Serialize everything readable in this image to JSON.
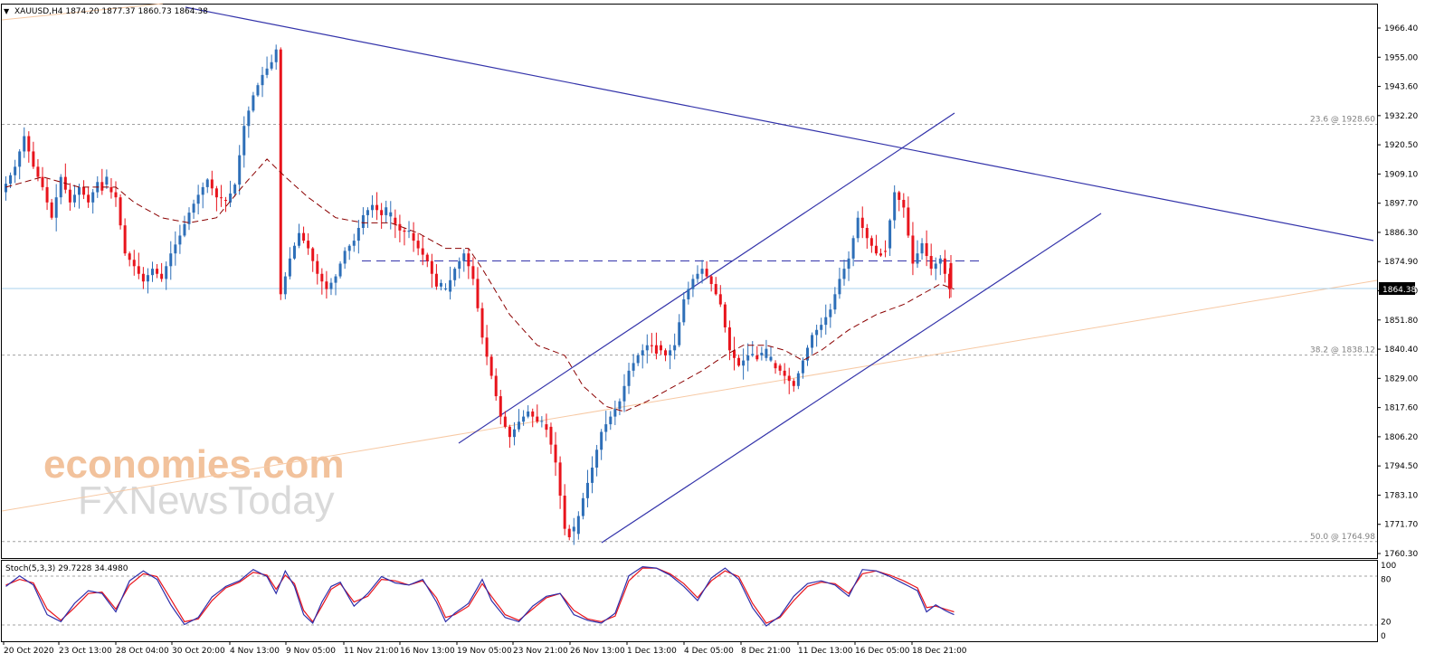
{
  "header": {
    "symbol_line": "XAUUSD,H4  1874.20 1877.37 1860.73 1864.38"
  },
  "watermark": {
    "line1": "economies.com",
    "line2": "FXNewsToday"
  },
  "colors": {
    "bull": "#2e6fb8",
    "bear": "#e8141c",
    "trendline": "#3333aa",
    "ma": "#8b0000",
    "fib_line": "#a0a0a0",
    "current_price_bg": "#000000"
  },
  "chart_data": [
    {
      "type": "candlestick",
      "symbol": "XAUUSD",
      "timeframe": "H4",
      "ohlc": {
        "open": 1874.2,
        "high": 1877.37,
        "low": 1860.73,
        "close": 1864.38
      },
      "current_price": "1864.38",
      "ylim": [
        1760.3,
        1975.0
      ],
      "y_ticks": [
        "1966.40",
        "1955.00",
        "1943.60",
        "1932.20",
        "1920.50",
        "1909.10",
        "1897.70",
        "1886.30",
        "1874.90",
        "1863.50",
        "1851.80",
        "1840.40",
        "1829.00",
        "1817.60",
        "1806.20",
        "1794.50",
        "1783.10",
        "1771.70",
        "1760.30"
      ],
      "x_ticks": [
        "20 Oct 2020",
        "23 Oct 13:00",
        "28 Oct 04:00",
        "30 Oct 20:00",
        "4 Nov 13:00",
        "9 Nov 05:00",
        "11 Nov 21:00",
        "16 Nov 13:00",
        "19 Nov 05:00",
        "23 Nov 21:00",
        "26 Nov 13:00",
        "1 Dec 13:00",
        "4 Dec 05:00",
        "8 Dec 21:00",
        "11 Dec 13:00",
        "16 Dec 05:00",
        "18 Dec 21:00"
      ],
      "fib_levels": [
        {
          "label": "23.6 @ 1928.60",
          "value": 1928.6
        },
        {
          "label": "38.2 @ 1838.12",
          "value": 1838.12
        },
        {
          "label": "50.0 @ 1764.98",
          "value": 1764.98
        }
      ],
      "horizontal_dashed_resistance": 1875.5,
      "price_path": [
        [
          0,
          1902
        ],
        [
          3,
          1912
        ],
        [
          5,
          1924
        ],
        [
          7,
          1912
        ],
        [
          9,
          1904
        ],
        [
          11,
          1892
        ],
        [
          13,
          1908
        ],
        [
          15,
          1898
        ],
        [
          17,
          1904
        ],
        [
          19,
          1898
        ],
        [
          21,
          1906
        ],
        [
          23,
          1904
        ],
        [
          25,
          1900
        ],
        [
          27,
          1878
        ],
        [
          29,
          1873
        ],
        [
          31,
          1867
        ],
        [
          33,
          1872
        ],
        [
          35,
          1868
        ],
        [
          37,
          1878
        ],
        [
          39,
          1885
        ],
        [
          41,
          1894
        ],
        [
          43,
          1901
        ],
        [
          45,
          1907
        ],
        [
          47,
          1900
        ],
        [
          49,
          1898
        ],
        [
          51,
          1905
        ],
        [
          53,
          1928
        ],
        [
          55,
          1940
        ],
        [
          57,
          1948
        ],
        [
          59,
          1953
        ],
        [
          60,
          1958
        ],
        [
          61,
          1862
        ],
        [
          63,
          1876
        ],
        [
          65,
          1886
        ],
        [
          67,
          1880
        ],
        [
          69,
          1870
        ],
        [
          71,
          1864
        ],
        [
          73,
          1869
        ],
        [
          75,
          1879
        ],
        [
          77,
          1883
        ],
        [
          79,
          1893
        ],
        [
          81,
          1897
        ],
        [
          83,
          1893
        ],
        [
          85,
          1892
        ],
        [
          87,
          1887
        ],
        [
          89,
          1886
        ],
        [
          91,
          1880
        ],
        [
          93,
          1875
        ],
        [
          95,
          1865
        ],
        [
          97,
          1863
        ],
        [
          99,
          1872
        ],
        [
          101,
          1878
        ],
        [
          103,
          1868
        ],
        [
          105,
          1845
        ],
        [
          107,
          1830
        ],
        [
          109,
          1814
        ],
        [
          111,
          1806
        ],
        [
          113,
          1812
        ],
        [
          115,
          1816
        ],
        [
          117,
          1812
        ],
        [
          119,
          1810
        ],
        [
          121,
          1796
        ],
        [
          123,
          1770
        ],
        [
          125,
          1768
        ],
        [
          127,
          1782
        ],
        [
          129,
          1794
        ],
        [
          131,
          1808
        ],
        [
          133,
          1814
        ],
        [
          135,
          1820
        ],
        [
          137,
          1832
        ],
        [
          139,
          1838
        ],
        [
          141,
          1842
        ],
        [
          143,
          1842
        ],
        [
          145,
          1838
        ],
        [
          147,
          1842
        ],
        [
          149,
          1860
        ],
        [
          151,
          1868
        ],
        [
          153,
          1872
        ],
        [
          155,
          1866
        ],
        [
          157,
          1858
        ],
        [
          159,
          1840
        ],
        [
          161,
          1834
        ],
        [
          163,
          1838
        ],
        [
          165,
          1838
        ],
        [
          167,
          1836
        ],
        [
          169,
          1834
        ],
        [
          171,
          1830
        ],
        [
          173,
          1826
        ],
        [
          175,
          1836
        ],
        [
          177,
          1846
        ],
        [
          179,
          1850
        ],
        [
          181,
          1856
        ],
        [
          183,
          1868
        ],
        [
          185,
          1876
        ],
        [
          187,
          1892
        ],
        [
          189,
          1884
        ],
        [
          191,
          1878
        ],
        [
          193,
          1880
        ],
        [
          195,
          1902
        ],
        [
          197,
          1896
        ],
        [
          199,
          1874
        ],
        [
          201,
          1882
        ],
        [
          203,
          1872
        ],
        [
          205,
          1876
        ],
        [
          207,
          1864
        ]
      ],
      "moving_average_path": [
        [
          0,
          1904
        ],
        [
          8,
          1908
        ],
        [
          16,
          1904
        ],
        [
          24,
          1904
        ],
        [
          28,
          1898
        ],
        [
          34,
          1892
        ],
        [
          40,
          1890
        ],
        [
          46,
          1892
        ],
        [
          52,
          1905
        ],
        [
          57,
          1915
        ],
        [
          61,
          1908
        ],
        [
          66,
          1900
        ],
        [
          72,
          1892
        ],
        [
          78,
          1890
        ],
        [
          84,
          1890
        ],
        [
          90,
          1886
        ],
        [
          96,
          1880
        ],
        [
          101,
          1880
        ],
        [
          104,
          1872
        ],
        [
          110,
          1854
        ],
        [
          116,
          1842
        ],
        [
          122,
          1838
        ],
        [
          126,
          1826
        ],
        [
          131,
          1818
        ],
        [
          135,
          1816
        ],
        [
          140,
          1820
        ],
        [
          146,
          1826
        ],
        [
          152,
          1832
        ],
        [
          157,
          1838
        ],
        [
          161,
          1842
        ],
        [
          166,
          1842
        ],
        [
          170,
          1840
        ],
        [
          174,
          1836
        ],
        [
          178,
          1840
        ],
        [
          184,
          1848
        ],
        [
          190,
          1854
        ],
        [
          196,
          1858
        ],
        [
          200,
          1862
        ],
        [
          204,
          1866
        ],
        [
          207,
          1864
        ]
      ],
      "indicator": {
        "label": "Stoch(5,3,3) 29.7228 34.4980",
        "main": 29.7228,
        "signal": 34.498,
        "y_ticks": [
          "100",
          "80",
          "20",
          "0"
        ],
        "k_path": [
          [
            0,
            70
          ],
          [
            3,
            85
          ],
          [
            6,
            72
          ],
          [
            9,
            30
          ],
          [
            12,
            20
          ],
          [
            15,
            46
          ],
          [
            18,
            64
          ],
          [
            21,
            60
          ],
          [
            24,
            34
          ],
          [
            27,
            78
          ],
          [
            30,
            92
          ],
          [
            33,
            80
          ],
          [
            36,
            44
          ],
          [
            39,
            16
          ],
          [
            42,
            26
          ],
          [
            45,
            55
          ],
          [
            48,
            70
          ],
          [
            51,
            78
          ],
          [
            54,
            94
          ],
          [
            57,
            84
          ],
          [
            59,
            60
          ],
          [
            61,
            92
          ],
          [
            63,
            70
          ],
          [
            65,
            30
          ],
          [
            67,
            18
          ],
          [
            69,
            48
          ],
          [
            71,
            70
          ],
          [
            73,
            76
          ],
          [
            76,
            42
          ],
          [
            79,
            60
          ],
          [
            82,
            84
          ],
          [
            85,
            75
          ],
          [
            88,
            72
          ],
          [
            91,
            80
          ],
          [
            94,
            48
          ],
          [
            96,
            20
          ],
          [
            98,
            32
          ],
          [
            101,
            46
          ],
          [
            104,
            80
          ],
          [
            106,
            50
          ],
          [
            109,
            26
          ],
          [
            112,
            20
          ],
          [
            115,
            42
          ],
          [
            118,
            56
          ],
          [
            121,
            60
          ],
          [
            124,
            30
          ],
          [
            127,
            22
          ],
          [
            130,
            18
          ],
          [
            133,
            32
          ],
          [
            136,
            85
          ],
          [
            139,
            98
          ],
          [
            142,
            96
          ],
          [
            145,
            86
          ],
          [
            148,
            70
          ],
          [
            151,
            50
          ],
          [
            154,
            82
          ],
          [
            157,
            96
          ],
          [
            160,
            80
          ],
          [
            163,
            40
          ],
          [
            166,
            14
          ],
          [
            169,
            28
          ],
          [
            172,
            56
          ],
          [
            175,
            74
          ],
          [
            178,
            78
          ],
          [
            181,
            72
          ],
          [
            184,
            56
          ],
          [
            187,
            94
          ],
          [
            190,
            92
          ],
          [
            193,
            84
          ],
          [
            196,
            74
          ],
          [
            199,
            64
          ],
          [
            201,
            34
          ],
          [
            203,
            44
          ],
          [
            205,
            36
          ],
          [
            207,
            30
          ]
        ],
        "d_path": [
          [
            0,
            72
          ],
          [
            3,
            80
          ],
          [
            6,
            75
          ],
          [
            9,
            38
          ],
          [
            12,
            22
          ],
          [
            15,
            40
          ],
          [
            18,
            60
          ],
          [
            21,
            62
          ],
          [
            24,
            38
          ],
          [
            27,
            72
          ],
          [
            30,
            88
          ],
          [
            33,
            84
          ],
          [
            36,
            52
          ],
          [
            39,
            20
          ],
          [
            42,
            24
          ],
          [
            45,
            50
          ],
          [
            48,
            68
          ],
          [
            51,
            76
          ],
          [
            54,
            90
          ],
          [
            57,
            86
          ],
          [
            59,
            66
          ],
          [
            61,
            86
          ],
          [
            63,
            74
          ],
          [
            65,
            36
          ],
          [
            67,
            20
          ],
          [
            69,
            42
          ],
          [
            71,
            66
          ],
          [
            73,
            74
          ],
          [
            76,
            48
          ],
          [
            79,
            56
          ],
          [
            82,
            80
          ],
          [
            85,
            78
          ],
          [
            88,
            72
          ],
          [
            91,
            78
          ],
          [
            94,
            54
          ],
          [
            96,
            26
          ],
          [
            98,
            30
          ],
          [
            101,
            42
          ],
          [
            104,
            74
          ],
          [
            106,
            56
          ],
          [
            109,
            30
          ],
          [
            112,
            22
          ],
          [
            115,
            38
          ],
          [
            118,
            54
          ],
          [
            121,
            60
          ],
          [
            124,
            36
          ],
          [
            127,
            24
          ],
          [
            130,
            20
          ],
          [
            133,
            28
          ],
          [
            136,
            78
          ],
          [
            139,
            96
          ],
          [
            142,
            96
          ],
          [
            145,
            88
          ],
          [
            148,
            74
          ],
          [
            151,
            54
          ],
          [
            154,
            78
          ],
          [
            157,
            92
          ],
          [
            160,
            84
          ],
          [
            163,
            46
          ],
          [
            166,
            18
          ],
          [
            169,
            26
          ],
          [
            172,
            50
          ],
          [
            175,
            70
          ],
          [
            178,
            76
          ],
          [
            181,
            74
          ],
          [
            184,
            60
          ],
          [
            187,
            88
          ],
          [
            190,
            92
          ],
          [
            193,
            86
          ],
          [
            196,
            78
          ],
          [
            199,
            68
          ],
          [
            201,
            40
          ],
          [
            203,
            42
          ],
          [
            205,
            38
          ],
          [
            207,
            34
          ]
        ]
      }
    }
  ]
}
